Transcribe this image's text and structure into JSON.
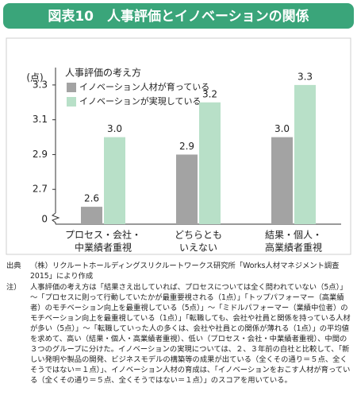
{
  "header": {
    "title": "図表10　人事評価とイノベーションの関係"
  },
  "chart_data": {
    "type": "bar",
    "y_unit_label": "(点)",
    "axis_break_label": "0",
    "legend_title": "人事評価の考え方",
    "categories": [
      [
        "プロセス・会社・",
        "中業績者重視"
      ],
      [
        "どちらとも",
        "いえない"
      ],
      [
        "結果・個人・",
        "高業績者重視"
      ]
    ],
    "series": [
      {
        "name": "イノベーション人材が育っている",
        "color": "#a3a3a3",
        "values": [
          2.6,
          2.9,
          3.0
        ],
        "value_labels": [
          "2.6",
          "2.9",
          "3.0"
        ]
      },
      {
        "name": "イノベーションが実現している",
        "color": "#b8e0c8",
        "values": [
          3.0,
          3.2,
          3.3
        ],
        "value_labels": [
          "3.0",
          "3.2",
          "3.3"
        ]
      }
    ],
    "ylim": [
      2.5,
      3.4
    ],
    "yticks": [
      2.7,
      2.9,
      3.1,
      3.3
    ],
    "grid": false
  },
  "notes": {
    "source_label": "出典",
    "source": "（株）リクルートホールディングスリクルートワークス研究所「Works人材マネジメント調査2015」により作成",
    "note_label": "注）",
    "note": "人事評価の考え方は「結果さえ出していれば、プロセスについては全く問われていない（5点）」～「プロセスに則って行動していたかが最重要視される（1点）」「トップパフォーマー（高業績者）のモチベーション向上を最重視している（5点）」～「ミドルパフォーマー（業績中位者）のモチベーション向上を最重視している（1点）」「転職しても、会社や社員と関係を持っている人材が多い（5点）」～「転職していった人の多くは、会社や社員との関係が薄れる（1点）」の平均値を求めて、高い（結果・個人・高業績者重視）、低い（プロセス・会社・中業績者重視）、中間の３つのグループに分けた。イノベーションの実現については、２、３年前の自社と比較して、「新しい発明や製品の開発、ビジネスモデルの構築等の成果が出ている（全くその通り＝５点、全くそうではない＝１点）」、イノベーション人材の育成は、「イノベーションをおこす人材が育っている（全くその通り＝５点、全くそうではない＝１点）」のスコアを用いている。"
  }
}
